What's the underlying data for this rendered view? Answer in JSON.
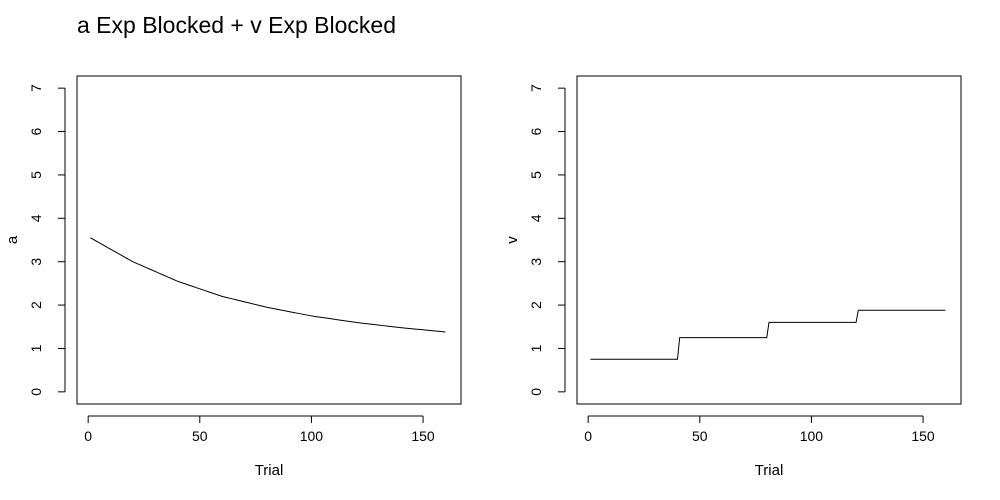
{
  "figure": {
    "title": "a Exp Blocked + v Exp Blocked"
  },
  "chart_data": [
    {
      "type": "line",
      "title": "",
      "xlabel": "Trial",
      "ylabel": "a",
      "xlim": [
        -5,
        167
      ],
      "ylim": [
        -0.28,
        7.28
      ],
      "xticks": [
        0,
        50,
        100,
        150
      ],
      "yticks": [
        0,
        1,
        2,
        3,
        4,
        5,
        6,
        7
      ],
      "grid": false,
      "series": [
        {
          "curve": "exponential-decay",
          "x_start": 1,
          "x_end": 160,
          "x": [
            1,
            20,
            40,
            60,
            80,
            100,
            120,
            140,
            160
          ],
          "y": [
            3.55,
            3.0,
            2.55,
            2.2,
            1.95,
            1.75,
            1.6,
            1.48,
            1.38
          ]
        }
      ]
    },
    {
      "type": "line",
      "title": "",
      "xlabel": "Trial",
      "ylabel": "v",
      "xlim": [
        -5,
        167
      ],
      "ylim": [
        -0.28,
        7.28
      ],
      "xticks": [
        0,
        50,
        100,
        150
      ],
      "yticks": [
        0,
        1,
        2,
        3,
        4,
        5,
        6,
        7
      ],
      "grid": false,
      "series": [
        {
          "curve": "step",
          "x": [
            1,
            40,
            41,
            80,
            81,
            120,
            121,
            160
          ],
          "y": [
            0.75,
            0.75,
            1.25,
            1.25,
            1.6,
            1.6,
            1.88,
            1.88
          ]
        }
      ]
    }
  ]
}
